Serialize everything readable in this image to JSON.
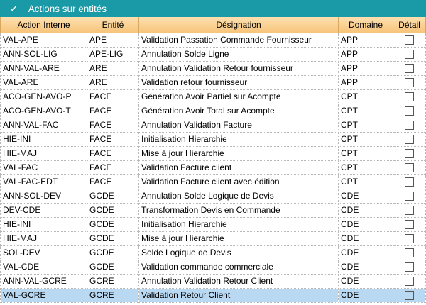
{
  "title": "Actions sur entités",
  "columns": [
    "Action Interne",
    "Entité",
    "Désignation",
    "Domaine",
    "Détail"
  ],
  "rows": [
    [
      "VAL-APE",
      "APE",
      "Validation Passation Commande Fournisseur",
      "APP"
    ],
    [
      "ANN-SOL-LIG",
      "APE-LIG",
      "Annulation Solde Ligne",
      "APP"
    ],
    [
      "ANN-VAL-ARE",
      "ARE",
      "Annulation Validation Retour fournisseur",
      "APP"
    ],
    [
      "VAL-ARE",
      "ARE",
      "Validation retour fournisseur",
      "APP"
    ],
    [
      "ACO-GEN-AVO-P",
      "FACE",
      "Génération Avoir Partiel sur Acompte",
      "CPT"
    ],
    [
      "ACO-GEN-AVO-T",
      "FACE",
      "Génération Avoir Total sur Acompte",
      "CPT"
    ],
    [
      "ANN-VAL-FAC",
      "FACE",
      "Annulation Validation Facture",
      "CPT"
    ],
    [
      "HIE-INI",
      "FACE",
      "Initialisation Hierarchie",
      "CPT"
    ],
    [
      "HIE-MAJ",
      "FACE",
      "Mise à jour Hierarchie",
      "CPT"
    ],
    [
      "VAL-FAC",
      "FACE",
      "Validation Facture client",
      "CPT"
    ],
    [
      "VAL-FAC-EDT",
      "FACE",
      "Validation Facture client avec édition",
      "CPT"
    ],
    [
      "ANN-SOL-DEV",
      "GCDE",
      "Annulation Solde Logique de Devis",
      "CDE"
    ],
    [
      "DEV-CDE",
      "GCDE",
      "Transformation Devis en Commande",
      "CDE"
    ],
    [
      "HIE-INI",
      "GCDE",
      "Initialisation Hierarchie",
      "CDE"
    ],
    [
      "HIE-MAJ",
      "GCDE",
      "Mise à jour Hierarchie",
      "CDE"
    ],
    [
      "SOL-DEV",
      "GCDE",
      "Solde Logique de Devis",
      "CDE"
    ],
    [
      "VAL-CDE",
      "GCDE",
      "Validation commande commerciale",
      "CDE"
    ],
    [
      "ANN-VAL-GCRE",
      "GCRE",
      "Annulation Validation Retour Client",
      "CDE"
    ],
    [
      "VAL-GCRE",
      "GCRE",
      "Validation Retour Client",
      "CDE"
    ]
  ],
  "selected_row": 18,
  "detail_checked": [
    false,
    false,
    false,
    false,
    false,
    false,
    false,
    false,
    false,
    false,
    false,
    false,
    false,
    false,
    false,
    false,
    false,
    false,
    false
  ]
}
